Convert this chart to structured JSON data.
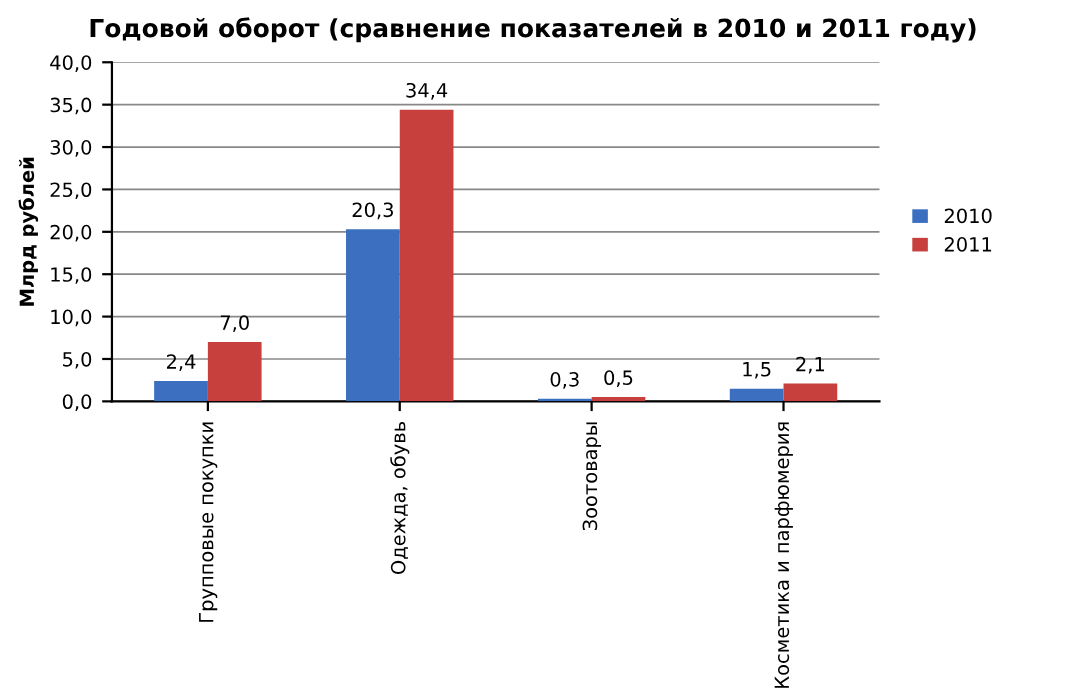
{
  "chart_data": {
    "type": "bar",
    "title": "Годовой оборот (сравнение показателей в 2010 и 2011 году)",
    "ylabel": "Млрд рублей",
    "categories": [
      "Групповые покупки",
      "Одежда, обувь",
      "Зоотовары",
      "Косметика и парфюмерия"
    ],
    "series": [
      {
        "name": "2010",
        "color": "#3c6fc0",
        "values": [
          2.4,
          20.3,
          0.3,
          1.5
        ],
        "value_labels": [
          "2,4",
          "20,3",
          "0,3",
          "1,5"
        ]
      },
      {
        "name": "2011",
        "color": "#c8403d",
        "values": [
          7.0,
          34.4,
          0.5,
          2.1
        ],
        "value_labels": [
          "7,0",
          "34,4",
          "0,5",
          "2,1"
        ]
      }
    ],
    "ylim": [
      0,
      40
    ],
    "yticks": [
      {
        "value": 0,
        "label": "0,0"
      },
      {
        "value": 5,
        "label": "5,0"
      },
      {
        "value": 10,
        "label": "10,0"
      },
      {
        "value": 15,
        "label": "15,0"
      },
      {
        "value": 20,
        "label": "20,0"
      },
      {
        "value": 25,
        "label": "25,0"
      },
      {
        "value": 30,
        "label": "30,0"
      },
      {
        "value": 35,
        "label": "35,0"
      },
      {
        "value": 40,
        "label": "40,0"
      }
    ],
    "grid": "y",
    "legend": "right"
  }
}
